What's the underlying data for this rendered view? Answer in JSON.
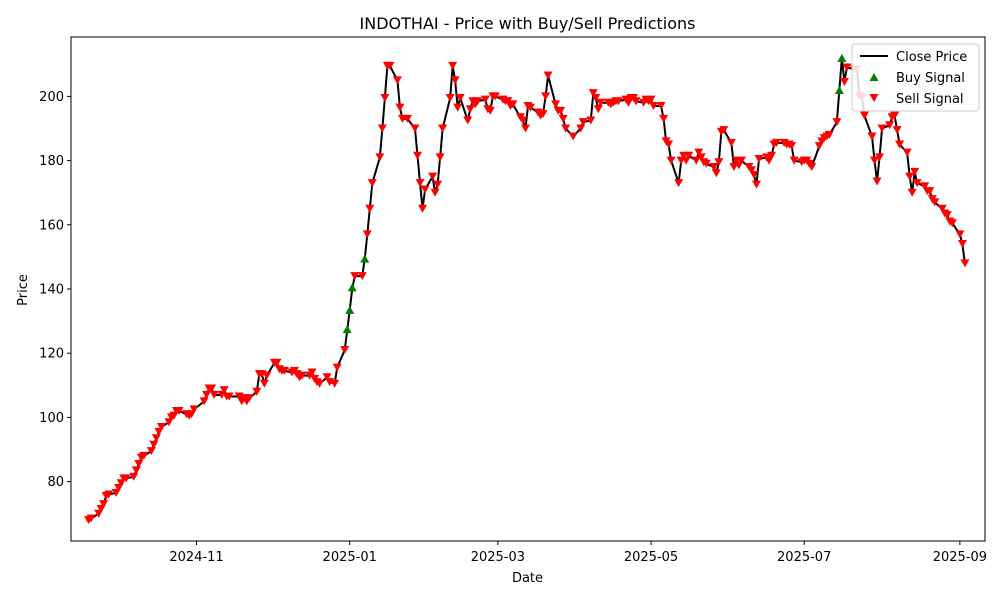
{
  "chart_data": {
    "type": "line",
    "title": "INDOTHAI - Price with Buy/Sell Predictions",
    "xlabel": "Date",
    "ylabel": "Price",
    "x_range": [
      "2024-09-12",
      "2025-09-11"
    ],
    "ylim": [
      61.5,
      218.5
    ],
    "y_ticks": [
      80,
      100,
      120,
      140,
      160,
      180,
      200
    ],
    "x_ticks": [
      {
        "label": "2024-11",
        "date": "2024-11-01"
      },
      {
        "label": "2025-01",
        "date": "2025-01-01"
      },
      {
        "label": "2025-03",
        "date": "2025-03-01"
      },
      {
        "label": "2025-05",
        "date": "2025-05-01"
      },
      {
        "label": "2025-07",
        "date": "2025-07-01"
      },
      {
        "label": "2025-09",
        "date": "2025-09-01"
      }
    ],
    "grid": false,
    "legend": {
      "placement": "top-right",
      "entries": [
        "Close Price",
        "Buy Signal",
        "Sell Signal"
      ]
    },
    "colors": {
      "close": "#000000",
      "buy": "#008000",
      "sell": "#ff0000"
    },
    "series": [
      {
        "name": "Close Price",
        "points": [
          [
            "2024-09-19",
            68
          ],
          [
            "2024-09-20",
            68.5
          ],
          [
            "2024-09-23",
            70
          ],
          [
            "2024-09-24",
            71.5
          ],
          [
            "2024-09-25",
            73
          ],
          [
            "2024-09-26",
            75.5
          ],
          [
            "2024-09-27",
            76
          ],
          [
            "2024-09-30",
            76.5
          ],
          [
            "2024-10-01",
            78
          ],
          [
            "2024-10-02",
            79.5
          ],
          [
            "2024-10-03",
            81
          ],
          [
            "2024-10-04",
            81
          ],
          [
            "2024-10-07",
            81.5
          ],
          [
            "2024-10-08",
            83.5
          ],
          [
            "2024-10-09",
            85.5
          ],
          [
            "2024-10-10",
            87.5
          ],
          [
            "2024-10-11",
            88
          ],
          [
            "2024-10-14",
            89.5
          ],
          [
            "2024-10-15",
            91.5
          ],
          [
            "2024-10-16",
            93.5
          ],
          [
            "2024-10-17",
            95.5
          ],
          [
            "2024-10-18",
            97
          ],
          [
            "2024-10-21",
            98.5
          ],
          [
            "2024-10-22",
            100
          ],
          [
            "2024-10-23",
            100.5
          ],
          [
            "2024-10-24",
            102
          ],
          [
            "2024-10-25",
            102
          ],
          [
            "2024-10-28",
            101
          ],
          [
            "2024-10-29",
            100.5
          ],
          [
            "2024-10-30",
            101
          ],
          [
            "2024-10-31",
            102.5
          ],
          [
            "2024-11-04",
            105
          ],
          [
            "2024-11-05",
            107
          ],
          [
            "2024-11-06",
            109
          ],
          [
            "2024-11-07",
            109
          ],
          [
            "2024-11-08",
            107
          ],
          [
            "2024-11-11",
            107
          ],
          [
            "2024-11-12",
            108.5
          ],
          [
            "2024-11-13",
            106.5
          ],
          [
            "2024-11-14",
            106.5
          ],
          [
            "2024-11-18",
            106.5
          ],
          [
            "2024-11-19",
            105
          ],
          [
            "2024-11-20",
            106
          ],
          [
            "2024-11-21",
            105
          ],
          [
            "2024-11-22",
            106
          ],
          [
            "2024-11-25",
            108
          ],
          [
            "2024-11-26",
            113.5
          ],
          [
            "2024-11-27",
            113.5
          ],
          [
            "2024-11-28",
            110.5
          ],
          [
            "2024-11-29",
            113
          ],
          [
            "2024-12-02",
            117
          ],
          [
            "2024-12-03",
            117
          ],
          [
            "2024-12-04",
            115
          ],
          [
            "2024-12-05",
            114.5
          ],
          [
            "2024-12-06",
            114.5
          ],
          [
            "2024-12-09",
            114
          ],
          [
            "2024-12-10",
            114.5
          ],
          [
            "2024-12-11",
            113.5
          ],
          [
            "2024-12-12",
            112.5
          ],
          [
            "2024-12-13",
            113
          ],
          [
            "2024-12-16",
            113
          ],
          [
            "2024-12-17",
            114
          ],
          [
            "2024-12-18",
            112
          ],
          [
            "2024-12-19",
            111
          ],
          [
            "2024-12-20",
            110.5
          ],
          [
            "2024-12-23",
            112.5
          ],
          [
            "2024-12-24",
            111
          ],
          [
            "2024-12-26",
            110.5
          ],
          [
            "2024-12-27",
            115.5
          ],
          [
            "2024-12-30",
            121
          ],
          [
            "2024-12-31",
            127
          ],
          [
            "2025-01-01",
            133.5
          ],
          [
            "2025-01-02",
            140
          ],
          [
            "2025-01-03",
            144
          ],
          [
            "2025-01-06",
            144
          ],
          [
            "2025-01-07",
            149.5
          ],
          [
            "2025-01-08",
            157
          ],
          [
            "2025-01-09",
            165
          ],
          [
            "2025-01-10",
            173
          ],
          [
            "2025-01-13",
            181
          ],
          [
            "2025-01-14",
            190
          ],
          [
            "2025-01-15",
            199.5
          ],
          [
            "2025-01-16",
            209.5
          ],
          [
            "2025-01-17",
            209.5
          ],
          [
            "2025-01-20",
            205
          ],
          [
            "2025-01-21",
            196.5
          ],
          [
            "2025-01-22",
            193
          ],
          [
            "2025-01-24",
            193
          ],
          [
            "2025-01-27",
            190
          ],
          [
            "2025-01-28",
            181.5
          ],
          [
            "2025-01-29",
            173
          ],
          [
            "2025-01-30",
            165
          ],
          [
            "2025-01-31",
            171
          ],
          [
            "2025-02-03",
            175
          ],
          [
            "2025-02-04",
            170
          ],
          [
            "2025-02-05",
            172.5
          ],
          [
            "2025-02-06",
            181
          ],
          [
            "2025-02-07",
            190
          ],
          [
            "2025-02-10",
            199.5
          ],
          [
            "2025-02-11",
            209.5
          ],
          [
            "2025-02-12",
            205
          ],
          [
            "2025-02-13",
            196.5
          ],
          [
            "2025-02-14",
            199.5
          ],
          [
            "2025-02-17",
            192.5
          ],
          [
            "2025-02-18",
            196
          ],
          [
            "2025-02-19",
            198.5
          ],
          [
            "2025-02-20",
            197.5
          ],
          [
            "2025-02-21",
            198.5
          ],
          [
            "2025-02-24",
            199
          ],
          [
            "2025-02-25",
            196
          ],
          [
            "2025-02-26",
            195.5
          ],
          [
            "2025-02-27",
            200
          ],
          [
            "2025-02-28",
            200
          ],
          [
            "2025-03-03",
            199
          ],
          [
            "2025-03-04",
            198.5
          ],
          [
            "2025-03-05",
            198.5
          ],
          [
            "2025-03-06",
            197
          ],
          [
            "2025-03-07",
            197.5
          ],
          [
            "2025-03-10",
            193.5
          ],
          [
            "2025-03-11",
            192.5
          ],
          [
            "2025-03-12",
            190
          ],
          [
            "2025-03-13",
            197
          ],
          [
            "2025-03-14",
            196.5
          ],
          [
            "2025-03-17",
            195
          ],
          [
            "2025-03-18",
            194
          ],
          [
            "2025-03-19",
            194.5
          ],
          [
            "2025-03-20",
            200
          ],
          [
            "2025-03-21",
            206.5
          ],
          [
            "2025-03-24",
            197.5
          ],
          [
            "2025-03-25",
            195.5
          ],
          [
            "2025-03-26",
            195.5
          ],
          [
            "2025-03-27",
            193
          ],
          [
            "2025-03-28",
            190
          ],
          [
            "2025-03-31",
            187.5
          ],
          [
            "2025-04-03",
            190
          ],
          [
            "2025-04-04",
            192
          ],
          [
            "2025-04-07",
            192.5
          ],
          [
            "2025-04-08",
            201
          ],
          [
            "2025-04-09",
            199.5
          ],
          [
            "2025-04-10",
            196
          ],
          [
            "2025-04-11",
            198
          ],
          [
            "2025-04-14",
            198
          ],
          [
            "2025-04-15",
            197.5
          ],
          [
            "2025-04-16",
            198
          ],
          [
            "2025-04-17",
            198.5
          ],
          [
            "2025-04-18",
            198.5
          ],
          [
            "2025-04-21",
            199
          ],
          [
            "2025-04-22",
            198
          ],
          [
            "2025-04-23",
            199.5
          ],
          [
            "2025-04-24",
            199.5
          ],
          [
            "2025-04-25",
            198.5
          ],
          [
            "2025-04-28",
            198
          ],
          [
            "2025-04-29",
            199
          ],
          [
            "2025-04-30",
            198.5
          ],
          [
            "2025-05-01",
            199
          ],
          [
            "2025-05-02",
            197
          ],
          [
            "2025-05-05",
            197
          ],
          [
            "2025-05-06",
            193
          ],
          [
            "2025-05-07",
            186
          ],
          [
            "2025-05-08",
            185
          ],
          [
            "2025-05-09",
            180
          ],
          [
            "2025-05-12",
            173
          ],
          [
            "2025-05-13",
            180
          ],
          [
            "2025-05-14",
            181.5
          ],
          [
            "2025-05-15",
            180
          ],
          [
            "2025-05-16",
            181.5
          ],
          [
            "2025-05-19",
            180
          ],
          [
            "2025-05-20",
            182.5
          ],
          [
            "2025-05-21",
            181
          ],
          [
            "2025-05-22",
            179.5
          ],
          [
            "2025-05-23",
            179
          ],
          [
            "2025-05-26",
            178
          ],
          [
            "2025-05-27",
            176
          ],
          [
            "2025-05-28",
            179.5
          ],
          [
            "2025-05-29",
            189
          ],
          [
            "2025-05-30",
            189.5
          ],
          [
            "2025-06-02",
            185.5
          ],
          [
            "2025-06-03",
            178
          ],
          [
            "2025-06-04",
            180
          ],
          [
            "2025-06-05",
            178.5
          ],
          [
            "2025-06-06",
            180
          ],
          [
            "2025-06-09",
            178
          ],
          [
            "2025-06-10",
            177
          ],
          [
            "2025-06-11",
            175.5
          ],
          [
            "2025-06-12",
            172.5
          ],
          [
            "2025-06-13",
            180.5
          ],
          [
            "2025-06-16",
            181
          ],
          [
            "2025-06-17",
            180
          ],
          [
            "2025-06-18",
            181.5
          ],
          [
            "2025-06-19",
            185
          ],
          [
            "2025-06-20",
            185.5
          ],
          [
            "2025-06-23",
            185.5
          ],
          [
            "2025-06-24",
            185
          ],
          [
            "2025-06-25",
            185
          ],
          [
            "2025-06-26",
            184.5
          ],
          [
            "2025-06-27",
            180
          ],
          [
            "2025-06-30",
            179.5
          ],
          [
            "2025-07-01",
            180
          ],
          [
            "2025-07-02",
            180
          ],
          [
            "2025-07-03",
            179
          ],
          [
            "2025-07-04",
            178
          ],
          [
            "2025-07-07",
            184.5
          ],
          [
            "2025-07-08",
            186
          ],
          [
            "2025-07-09",
            187
          ],
          [
            "2025-07-10",
            187.5
          ],
          [
            "2025-07-11",
            188
          ],
          [
            "2025-07-14",
            192
          ],
          [
            "2025-07-15",
            202
          ],
          [
            "2025-07-16",
            212
          ],
          [
            "2025-07-17",
            204.5
          ],
          [
            "2025-07-18",
            209
          ],
          [
            "2025-07-21",
            208.5
          ],
          [
            "2025-07-22",
            208.5
          ],
          [
            "2025-07-23",
            200
          ],
          [
            "2025-07-24",
            199.5
          ],
          [
            "2025-07-25",
            194
          ],
          [
            "2025-07-28",
            187.5
          ],
          [
            "2025-07-29",
            180
          ],
          [
            "2025-07-30",
            173.5
          ],
          [
            "2025-07-31",
            181
          ],
          [
            "2025-08-01",
            190
          ],
          [
            "2025-08-04",
            191
          ],
          [
            "2025-08-05",
            193.5
          ],
          [
            "2025-08-06",
            194
          ],
          [
            "2025-08-07",
            189.5
          ],
          [
            "2025-08-08",
            185
          ],
          [
            "2025-08-11",
            182.5
          ],
          [
            "2025-08-12",
            175
          ],
          [
            "2025-08-13",
            170
          ],
          [
            "2025-08-14",
            176.5
          ],
          [
            "2025-08-15",
            173
          ],
          [
            "2025-08-18",
            172
          ],
          [
            "2025-08-19",
            170.5
          ],
          [
            "2025-08-20",
            170.5
          ],
          [
            "2025-08-21",
            168
          ],
          [
            "2025-08-22",
            167
          ],
          [
            "2025-08-25",
            165
          ],
          [
            "2025-08-26",
            163.5
          ],
          [
            "2025-08-27",
            163
          ],
          [
            "2025-08-28",
            161
          ],
          [
            "2025-08-29",
            160.5
          ],
          [
            "2025-09-01",
            157
          ],
          [
            "2025-09-02",
            154
          ],
          [
            "2025-09-03",
            148
          ]
        ]
      },
      {
        "name": "Buy Signal",
        "marker": "triangle-up",
        "points": [
          [
            "2024-12-31",
            127.5
          ],
          [
            "2025-01-01",
            133.5
          ],
          [
            "2025-01-02",
            140.5
          ],
          [
            "2025-01-07",
            149.5
          ],
          [
            "2025-07-15",
            202
          ],
          [
            "2025-07-16",
            212
          ]
        ]
      },
      {
        "name": "Sell Signal",
        "marker": "triangle-down",
        "exclude_dates": [
          "2024-12-31",
          "2025-01-01",
          "2025-01-02",
          "2025-01-07",
          "2025-07-15",
          "2025-07-16"
        ]
      }
    ]
  }
}
